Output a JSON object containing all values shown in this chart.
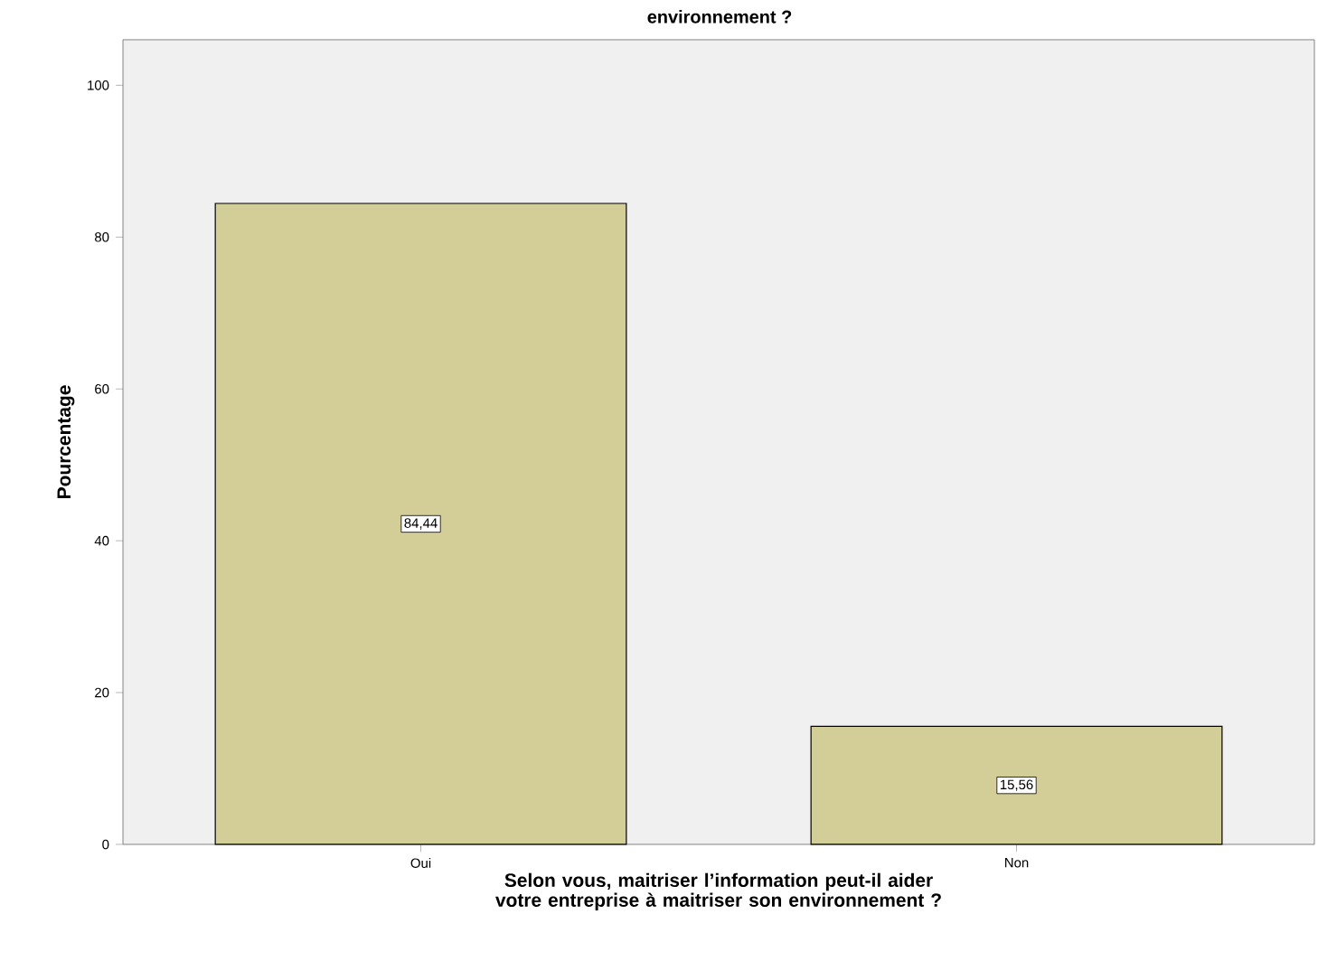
{
  "chart_data": {
    "type": "bar",
    "title": "environnement ?",
    "xlabel": "Selon vous, maitriser l’information peut-il aider votre entreprise à maitriser son environnement ?",
    "ylabel": "Pourcentage",
    "categories": [
      "Oui",
      "Non"
    ],
    "values": [
      84.44,
      15.56
    ],
    "value_labels": [
      "84,44",
      "15,56"
    ],
    "color": "#d3ce97",
    "ylim": [
      0,
      106
    ],
    "yticks": [
      0,
      20,
      40,
      60,
      80,
      100
    ]
  }
}
